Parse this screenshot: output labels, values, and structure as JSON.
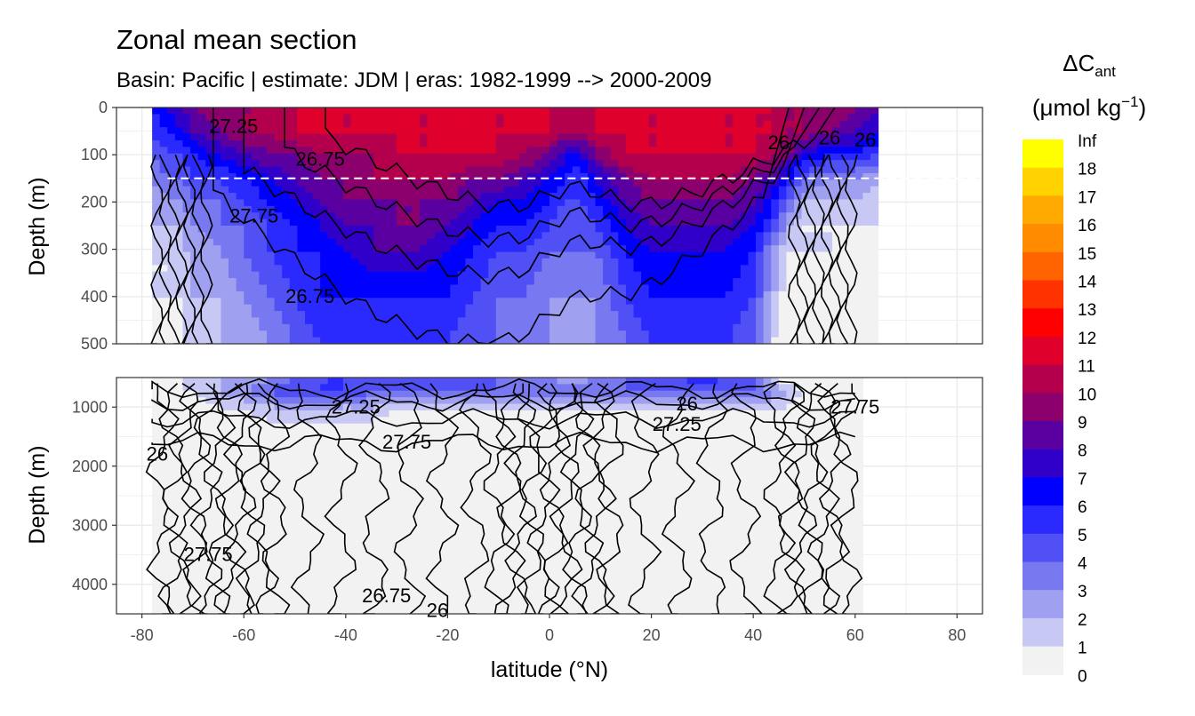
{
  "chart_data": {
    "type": "heatmap",
    "title": "Zonal mean section",
    "subtitle": "Basin: Pacific | estimate: JDM  | eras: 1982-1999 --> 2000-2009",
    "xlabel": "latitude (°N)",
    "ylabel": "Depth (m)",
    "xlim": [
      -85,
      85
    ],
    "x_ticks": [
      "-80",
      "-60",
      "-40",
      "-20",
      "0",
      "20",
      "40",
      "60",
      "80"
    ],
    "panels": [
      {
        "name": "upper",
        "ylim": [
          0,
          500
        ],
        "y_ticks": [
          "0",
          "100",
          "200",
          "300",
          "400",
          "500"
        ]
      },
      {
        "name": "lower",
        "ylim": [
          500,
          4500
        ],
        "y_ticks": [
          "1000",
          "2000",
          "3000",
          "4000"
        ]
      }
    ],
    "reference_depth_m": 150,
    "legend": {
      "title_main": "ΔC",
      "title_sub": "ant",
      "units_prefix": "(μmol kg",
      "units_sup": "−1",
      "units_suffix": ")",
      "placement": "right",
      "bins": [
        {
          "label": "Inf",
          "color": "#ffff00"
        },
        {
          "label": "18",
          "color": "#ffd200"
        },
        {
          "label": "17",
          "color": "#ffaa00"
        },
        {
          "label": "16",
          "color": "#ff8c00"
        },
        {
          "label": "15",
          "color": "#ff6400"
        },
        {
          "label": "14",
          "color": "#ff3200"
        },
        {
          "label": "13",
          "color": "#ff0000"
        },
        {
          "label": "12",
          "color": "#e0002c"
        },
        {
          "label": "11",
          "color": "#b4004c"
        },
        {
          "label": "10",
          "color": "#8c006e"
        },
        {
          "label": "9",
          "color": "#5a00a0"
        },
        {
          "label": "8",
          "color": "#3000c8"
        },
        {
          "label": "7",
          "color": "#0000ff"
        },
        {
          "label": "6",
          "color": "#2a2aff"
        },
        {
          "label": "5",
          "color": "#5050f5"
        },
        {
          "label": "4",
          "color": "#7878f0"
        },
        {
          "label": "3",
          "color": "#a0a0f0"
        },
        {
          "label": "2",
          "color": "#c8c8f5"
        },
        {
          "label": "1",
          "color": "#f2f2f2"
        },
        {
          "label": "0",
          "color": null
        }
      ]
    },
    "contour_labels": [
      {
        "text": "27.25",
        "lat": -62,
        "depth": 40
      },
      {
        "text": "26.75",
        "lat": -45,
        "depth": 110
      },
      {
        "text": "26",
        "lat": 45,
        "depth": 75
      },
      {
        "text": "26",
        "lat": 55,
        "depth": 65
      },
      {
        "text": "26",
        "lat": 62,
        "depth": 70
      },
      {
        "text": "27.75",
        "lat": -58,
        "depth": 230
      },
      {
        "text": "26.75",
        "lat": -47,
        "depth": 400
      },
      {
        "text": "27.25",
        "lat": -38,
        "depth": 1000
      },
      {
        "text": "26",
        "lat": 27,
        "depth": 950
      },
      {
        "text": "27.75",
        "lat": 60,
        "depth": 1000
      },
      {
        "text": "27.75",
        "lat": -28,
        "depth": 1600
      },
      {
        "text": "26",
        "lat": -77,
        "depth": 1800
      },
      {
        "text": "27.25",
        "lat": 25,
        "depth": 1300
      },
      {
        "text": "27.75",
        "lat": -67,
        "depth": 3500
      },
      {
        "text": "26.75",
        "lat": -32,
        "depth": 4200
      },
      {
        "text": "26",
        "lat": -22,
        "depth": 4450
      }
    ],
    "color_field": {
      "lat": [
        -78,
        -75,
        -72,
        -70,
        -65,
        -60,
        -55,
        -50,
        -45,
        -40,
        -35,
        -30,
        -25,
        -20,
        -15,
        -10,
        -5,
        0,
        3,
        6,
        9,
        12,
        15,
        20,
        25,
        30,
        35,
        40,
        44,
        47,
        50,
        55,
        60,
        65
      ],
      "depth": [
        0,
        50,
        100,
        150,
        200,
        250,
        300,
        400,
        500,
        750,
        1000,
        1500,
        2000,
        3000,
        4500
      ],
      "values": [
        [
          7,
          8,
          9,
          10,
          11,
          11,
          11,
          12,
          12,
          12,
          12,
          12,
          12,
          12,
          12,
          12,
          12,
          12,
          12,
          12,
          12,
          12,
          12,
          12,
          12,
          12,
          12,
          12,
          12,
          11,
          11,
          11,
          10,
          9
        ],
        [
          6,
          7,
          8,
          9,
          10,
          11,
          11,
          12,
          12,
          12,
          12,
          12,
          12,
          12,
          12,
          12,
          12,
          12,
          11,
          11,
          12,
          12,
          12,
          12,
          12,
          12,
          12,
          12,
          12,
          11,
          11,
          10,
          9,
          8
        ],
        [
          5,
          6,
          6,
          7,
          8,
          9,
          10,
          10,
          11,
          11,
          11,
          12,
          12,
          12,
          12,
          12,
          11,
          10,
          8,
          8,
          10,
          11,
          12,
          12,
          12,
          12,
          12,
          12,
          11,
          10,
          8,
          7,
          7,
          6
        ],
        [
          4,
          5,
          5,
          6,
          6,
          7,
          8,
          9,
          10,
          10,
          11,
          11,
          11,
          11,
          10,
          10,
          9,
          8,
          7,
          6,
          8,
          9,
          10,
          11,
          11,
          11,
          11,
          10,
          9,
          7,
          5,
          4,
          4,
          3
        ],
        [
          3,
          4,
          4,
          5,
          5,
          6,
          7,
          8,
          9,
          10,
          10,
          10,
          10,
          10,
          9,
          8,
          8,
          7,
          6,
          6,
          7,
          8,
          9,
          10,
          10,
          10,
          10,
          9,
          7,
          5,
          3,
          3,
          3,
          2
        ],
        [
          3,
          3,
          3,
          4,
          5,
          5,
          6,
          7,
          8,
          9,
          9,
          10,
          10,
          9,
          8,
          7,
          7,
          6,
          5,
          5,
          6,
          7,
          8,
          9,
          9,
          9,
          9,
          8,
          6,
          3,
          2,
          2,
          2,
          2
        ],
        [
          2,
          2,
          3,
          3,
          4,
          5,
          6,
          7,
          7,
          8,
          9,
          9,
          9,
          8,
          7,
          6,
          6,
          5,
          5,
          5,
          5,
          6,
          7,
          8,
          8,
          8,
          8,
          7,
          4,
          2,
          2,
          2,
          1,
          1
        ],
        [
          2,
          2,
          2,
          3,
          3,
          4,
          5,
          6,
          7,
          7,
          7,
          7,
          7,
          7,
          6,
          5,
          5,
          4,
          4,
          4,
          4,
          5,
          6,
          7,
          7,
          7,
          7,
          6,
          3,
          1,
          1,
          1,
          1,
          1
        ],
        [
          1,
          1,
          2,
          2,
          3,
          3,
          4,
          5,
          6,
          6,
          6,
          6,
          6,
          6,
          5,
          5,
          4,
          4,
          3,
          3,
          4,
          4,
          5,
          6,
          6,
          7,
          6,
          5,
          2,
          1,
          1,
          1,
          1,
          1
        ],
        [
          1,
          1,
          2,
          2,
          3,
          4,
          5,
          6,
          6,
          6,
          5,
          5,
          5,
          5,
          5,
          5,
          5,
          5,
          5,
          5,
          5,
          5,
          5,
          5,
          5,
          5,
          5,
          5,
          4,
          3,
          2,
          2,
          1,
          1
        ],
        [
          1,
          1,
          1,
          1,
          2,
          2,
          3,
          3,
          3,
          3,
          3,
          2,
          2,
          2,
          2,
          2,
          2,
          2,
          2,
          2,
          2,
          2,
          2,
          2,
          2,
          2,
          2,
          2,
          2,
          2,
          1,
          1,
          1,
          1
        ],
        [
          1,
          1,
          1,
          1,
          1,
          1,
          1,
          1,
          1,
          1,
          1,
          1,
          1,
          1,
          1,
          1,
          1,
          1,
          1,
          1,
          1,
          1,
          1,
          1,
          1,
          1,
          1,
          1,
          1,
          1,
          1,
          1,
          1,
          1
        ],
        [
          1,
          1,
          1,
          1,
          1,
          1,
          1,
          1,
          1,
          1,
          1,
          1,
          1,
          1,
          1,
          1,
          1,
          1,
          1,
          1,
          1,
          1,
          1,
          1,
          1,
          1,
          1,
          1,
          1,
          1,
          1,
          1,
          1,
          1
        ],
        [
          1,
          1,
          1,
          1,
          1,
          1,
          1,
          1,
          1,
          1,
          1,
          1,
          1,
          1,
          1,
          1,
          1,
          1,
          1,
          1,
          1,
          1,
          1,
          1,
          1,
          1,
          1,
          1,
          1,
          1,
          1,
          1,
          1,
          1
        ],
        [
          1,
          1,
          1,
          1,
          1,
          1,
          1,
          1,
          1,
          1,
          1,
          1,
          1,
          1,
          1,
          1,
          1,
          1,
          1,
          1,
          1,
          1,
          1,
          1,
          1,
          1,
          1,
          1,
          1,
          1,
          1,
          1,
          1,
          1
        ]
      ]
    }
  }
}
